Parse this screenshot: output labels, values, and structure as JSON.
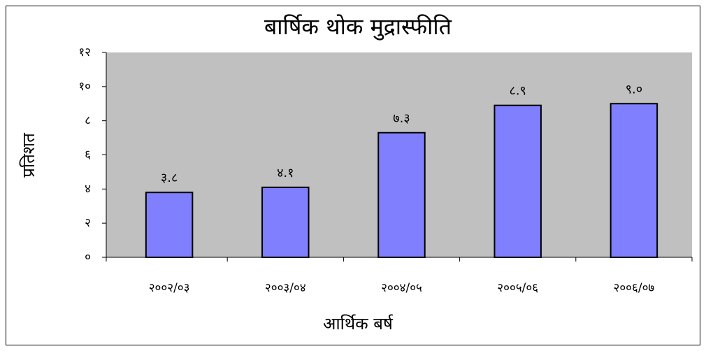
{
  "chart_data": {
    "type": "bar",
    "title": "बार्षिक थोक मुद्रास्फीति",
    "xlabel": "आर्थिक बर्ष",
    "ylabel": "प्रतिशत",
    "categories": [
      "२००२/०३",
      "२००३/०४",
      "२००४/०५",
      "२००५/०६",
      "२००६/०७"
    ],
    "values": [
      3.8,
      4.1,
      7.3,
      8.9,
      9.0
    ],
    "value_labels": [
      "३.८",
      "४.१",
      "७.३",
      "८.९",
      "९.०"
    ],
    "color": "#8080ff",
    "background": "#c0c0c0",
    "ylim": [
      0,
      12
    ],
    "yticks": [
      {
        "value": 0,
        "label": "०"
      },
      {
        "value": 2,
        "label": "२"
      },
      {
        "value": 4,
        "label": "४"
      },
      {
        "value": 6,
        "label": "६"
      },
      {
        "value": 8,
        "label": "८"
      },
      {
        "value": 10,
        "label": "१०"
      },
      {
        "value": 12,
        "label": "१२"
      }
    ],
    "grid": false
  }
}
